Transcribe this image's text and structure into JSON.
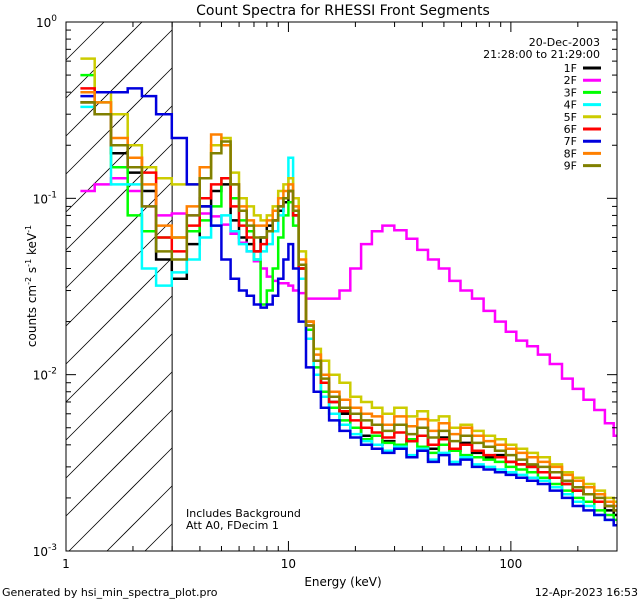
{
  "chart_data": {
    "type": "line",
    "title": "Count Spectra for RHESSI Front Segments",
    "xlabel": "Energy (keV)",
    "ylabel_parts": [
      "counts cm",
      "-2",
      " s",
      "-1",
      " keV",
      "-1"
    ],
    "ylabel": "counts cm-2 s-1 keV-1",
    "xscale": "log",
    "yscale": "log",
    "xlim": [
      1,
      300
    ],
    "ylim": [
      0.001,
      1
    ],
    "x_ticks": [
      {
        "value": 1,
        "label": "1"
      },
      {
        "value": 10,
        "label": "10"
      },
      {
        "value": 100,
        "label": "100"
      }
    ],
    "y_ticks": [
      {
        "value": 1,
        "base": "10",
        "exp": "0"
      },
      {
        "value": 0.1,
        "base": "10",
        "exp": "-1"
      },
      {
        "value": 0.01,
        "base": "10",
        "exp": "-2"
      },
      {
        "value": 0.001,
        "base": "10",
        "exp": "-3"
      }
    ],
    "date": "20-Dec-2003",
    "time_range": "21:28:00 to 21:29:00",
    "annotations": [
      "Includes Background",
      "Att A0, FDecim 1"
    ],
    "attenuator_region_keV": [
      1,
      3
    ],
    "series": [
      {
        "name": "1F",
        "color": "#000000",
        "x": [
          1.25,
          1.45,
          1.75,
          2.05,
          2.35,
          2.75,
          3.25,
          3.75,
          4.25,
          4.75,
          5.25,
          5.75,
          6.25,
          6.75,
          7.25,
          7.75,
          8.25,
          8.75,
          9.25,
          9.75,
          10.25,
          10.75,
          11.5,
          12.5,
          13.5,
          14.5,
          16,
          18,
          20,
          22.5,
          25,
          28,
          32,
          36,
          40,
          45,
          50,
          56,
          63,
          71,
          80,
          90,
          100,
          112,
          125,
          140,
          160,
          180,
          200,
          225,
          250,
          280,
          300
        ],
        "values": [
          0.35,
          0.3,
          0.18,
          0.14,
          0.11,
          0.045,
          0.035,
          0.055,
          0.09,
          0.11,
          0.12,
          0.075,
          0.06,
          0.055,
          0.05,
          0.06,
          0.07,
          0.075,
          0.085,
          0.095,
          0.11,
          0.08,
          0.04,
          0.02,
          0.012,
          0.009,
          0.007,
          0.006,
          0.005,
          0.0045,
          0.004,
          0.0042,
          0.0038,
          0.0042,
          0.0045,
          0.0038,
          0.0044,
          0.0037,
          0.0041,
          0.0036,
          0.0034,
          0.0035,
          0.0032,
          0.0031,
          0.003,
          0.0028,
          0.0026,
          0.0024,
          0.0022,
          0.0021,
          0.0019,
          0.0017,
          0.0016
        ]
      },
      {
        "name": "2F",
        "color": "#ff00ff",
        "x": [
          1.25,
          1.45,
          1.75,
          2.05,
          2.35,
          2.75,
          3.25,
          3.75,
          4.25,
          4.75,
          5.25,
          5.75,
          6.25,
          6.75,
          7.25,
          7.75,
          8.25,
          8.75,
          9.25,
          9.75,
          10.25,
          10.75,
          11.5,
          12.5,
          13.5,
          14.5,
          16,
          18,
          20,
          22.5,
          25,
          28,
          32,
          36,
          40,
          45,
          50,
          56,
          63,
          71,
          80,
          90,
          100,
          112,
          125,
          140,
          160,
          180,
          200,
          225,
          250,
          280,
          300
        ],
        "values": [
          0.11,
          0.12,
          0.13,
          0.11,
          0.09,
          0.08,
          0.082,
          0.08,
          0.082,
          0.079,
          0.071,
          0.063,
          0.056,
          0.05,
          0.044,
          0.04,
          0.036,
          0.034,
          0.033,
          0.033,
          0.032,
          0.03,
          0.029,
          0.027,
          0.027,
          0.027,
          0.027,
          0.03,
          0.04,
          0.055,
          0.065,
          0.07,
          0.066,
          0.059,
          0.051,
          0.045,
          0.04,
          0.034,
          0.03,
          0.027,
          0.023,
          0.02,
          0.0175,
          0.0156,
          0.0145,
          0.013,
          0.0115,
          0.0095,
          0.0083,
          0.0072,
          0.0063,
          0.0053,
          0.0045
        ]
      },
      {
        "name": "3F",
        "color": "#00ff00",
        "x": [
          1.25,
          1.45,
          1.75,
          2.05,
          2.35,
          2.75,
          3.25,
          3.75,
          4.25,
          4.75,
          5.25,
          5.75,
          6.25,
          6.75,
          7.25,
          7.75,
          8.25,
          8.75,
          9.25,
          9.75,
          10.25,
          10.75,
          11.5,
          12.5,
          13.5,
          14.5,
          16,
          18,
          20,
          22.5,
          25,
          28,
          32,
          36,
          40,
          45,
          50,
          56,
          63,
          71,
          80,
          90,
          100,
          112,
          125,
          140,
          160,
          180,
          200,
          225,
          250,
          280,
          300
        ],
        "values": [
          0.5,
          0.35,
          0.15,
          0.08,
          0.065,
          0.06,
          0.06,
          0.065,
          0.075,
          0.09,
          0.13,
          0.1,
          0.075,
          0.065,
          0.045,
          0.025,
          0.03,
          0.04,
          0.06,
          0.08,
          0.095,
          0.07,
          0.04,
          0.018,
          0.011,
          0.008,
          0.0065,
          0.0055,
          0.005,
          0.0043,
          0.0045,
          0.0041,
          0.004,
          0.0043,
          0.0039,
          0.0036,
          0.004,
          0.0037,
          0.0035,
          0.0034,
          0.0033,
          0.0032,
          0.003,
          0.0029,
          0.0028,
          0.0026,
          0.0024,
          0.0022,
          0.002,
          0.0019,
          0.0017,
          0.0016,
          0.0015
        ]
      },
      {
        "name": "4F",
        "color": "#00ffff",
        "x": [
          1.25,
          1.45,
          1.75,
          2.05,
          2.35,
          2.75,
          3.25,
          3.75,
          4.25,
          4.75,
          5.25,
          5.75,
          6.25,
          6.75,
          7.25,
          7.75,
          8.25,
          8.75,
          9.25,
          9.75,
          10.25,
          10.75,
          11.5,
          12.5,
          13.5,
          14.5,
          16,
          18,
          20,
          22.5,
          25,
          28,
          32,
          36,
          40,
          45,
          50,
          56,
          63,
          71,
          80,
          90,
          100,
          112,
          125,
          140,
          160,
          180,
          200,
          225,
          250,
          280,
          300
        ],
        "values": [
          0.33,
          0.3,
          0.12,
          0.12,
          0.04,
          0.032,
          0.038,
          0.045,
          0.06,
          0.07,
          0.08,
          0.065,
          0.055,
          0.05,
          0.045,
          0.05,
          0.055,
          0.065,
          0.08,
          0.1,
          0.17,
          0.09,
          0.035,
          0.016,
          0.01,
          0.0075,
          0.006,
          0.0052,
          0.0046,
          0.0042,
          0.004,
          0.0037,
          0.0039,
          0.0035,
          0.0038,
          0.0033,
          0.0036,
          0.0032,
          0.0034,
          0.0031,
          0.003,
          0.0029,
          0.0028,
          0.0027,
          0.0026,
          0.0025,
          0.0023,
          0.0021,
          0.0019,
          0.0018,
          0.0016,
          0.0015,
          0.0014
        ]
      },
      {
        "name": "5F",
        "color": "#cccc00",
        "x": [
          1.25,
          1.45,
          1.75,
          2.05,
          2.35,
          2.75,
          3.25,
          3.75,
          4.25,
          4.75,
          5.25,
          5.75,
          6.25,
          6.75,
          7.25,
          7.75,
          8.25,
          8.75,
          9.25,
          9.75,
          10.25,
          10.75,
          11.5,
          12.5,
          13.5,
          14.5,
          16,
          18,
          20,
          22.5,
          25,
          28,
          32,
          36,
          40,
          45,
          50,
          56,
          63,
          71,
          80,
          90,
          100,
          112,
          125,
          140,
          160,
          180,
          200,
          225,
          250,
          280,
          300
        ],
        "values": [
          0.62,
          0.4,
          0.3,
          0.2,
          0.15,
          0.13,
          0.12,
          0.12,
          0.13,
          0.2,
          0.22,
          0.14,
          0.1,
          0.09,
          0.08,
          0.075,
          0.08,
          0.09,
          0.11,
          0.12,
          0.13,
          0.1,
          0.05,
          0.02,
          0.014,
          0.012,
          0.01,
          0.009,
          0.0075,
          0.007,
          0.0065,
          0.006,
          0.0065,
          0.0058,
          0.0062,
          0.0055,
          0.0058,
          0.005,
          0.0052,
          0.0048,
          0.0045,
          0.0043,
          0.004,
          0.0038,
          0.0036,
          0.0034,
          0.0031,
          0.0028,
          0.0026,
          0.0024,
          0.0022,
          0.002,
          0.0019
        ]
      },
      {
        "name": "6F",
        "color": "#ff0000",
        "x": [
          1.25,
          1.45,
          1.75,
          2.05,
          2.35,
          2.75,
          3.25,
          3.75,
          4.25,
          4.75,
          5.25,
          5.75,
          6.25,
          6.75,
          7.25,
          7.75,
          8.25,
          8.75,
          9.25,
          9.75,
          10.25,
          10.75,
          11.5,
          12.5,
          13.5,
          14.5,
          16,
          18,
          20,
          22.5,
          25,
          28,
          32,
          36,
          40,
          45,
          50,
          56,
          63,
          71,
          80,
          90,
          100,
          112,
          125,
          140,
          160,
          180,
          200,
          225,
          250,
          280,
          300
        ],
        "values": [
          0.42,
          0.3,
          0.2,
          0.17,
          0.14,
          0.06,
          0.05,
          0.07,
          0.1,
          0.12,
          0.13,
          0.09,
          0.07,
          0.06,
          0.05,
          0.055,
          0.065,
          0.075,
          0.09,
          0.1,
          0.11,
          0.08,
          0.04,
          0.019,
          0.012,
          0.009,
          0.007,
          0.0062,
          0.0055,
          0.005,
          0.0047,
          0.0044,
          0.0047,
          0.0042,
          0.0045,
          0.004,
          0.0043,
          0.0038,
          0.004,
          0.0037,
          0.0035,
          0.0034,
          0.0032,
          0.0031,
          0.003,
          0.0028,
          0.0026,
          0.0024,
          0.0022,
          0.0021,
          0.0019,
          0.0018,
          0.0017
        ]
      },
      {
        "name": "7F",
        "color": "#0000dd",
        "x": [
          1.25,
          1.45,
          1.75,
          2.05,
          2.35,
          2.75,
          3.25,
          3.75,
          4.25,
          4.75,
          5.25,
          5.75,
          6.25,
          6.75,
          7.25,
          7.75,
          8.25,
          8.75,
          9.25,
          9.75,
          10.25,
          10.75,
          11.5,
          12.5,
          13.5,
          14.5,
          16,
          18,
          20,
          22.5,
          25,
          28,
          32,
          36,
          40,
          45,
          50,
          56,
          63,
          71,
          80,
          90,
          100,
          112,
          125,
          140,
          160,
          180,
          200,
          225,
          250,
          280,
          300
        ],
        "values": [
          0.38,
          0.4,
          0.4,
          0.42,
          0.38,
          0.3,
          0.22,
          0.12,
          0.09,
          0.07,
          0.045,
          0.035,
          0.03,
          0.028,
          0.025,
          0.024,
          0.025,
          0.028,
          0.035,
          0.045,
          0.055,
          0.04,
          0.02,
          0.011,
          0.008,
          0.0065,
          0.0055,
          0.0048,
          0.0044,
          0.004,
          0.0038,
          0.0036,
          0.0038,
          0.0034,
          0.0037,
          0.0032,
          0.0035,
          0.0031,
          0.0033,
          0.003,
          0.0029,
          0.0028,
          0.0027,
          0.0026,
          0.0025,
          0.0024,
          0.0022,
          0.002,
          0.0018,
          0.0017,
          0.0016,
          0.0015,
          0.0014
        ]
      },
      {
        "name": "8F",
        "color": "#ff8000",
        "x": [
          1.25,
          1.45,
          1.75,
          2.05,
          2.35,
          2.75,
          3.25,
          3.75,
          4.25,
          4.75,
          5.25,
          5.75,
          6.25,
          6.75,
          7.25,
          7.75,
          8.25,
          8.75,
          9.25,
          9.75,
          10.25,
          10.75,
          11.5,
          12.5,
          13.5,
          14.5,
          16,
          18,
          20,
          22.5,
          25,
          28,
          32,
          36,
          40,
          45,
          50,
          56,
          63,
          71,
          80,
          90,
          100,
          112,
          125,
          140,
          160,
          180,
          200,
          225,
          250,
          280,
          300
        ],
        "values": [
          0.4,
          0.35,
          0.22,
          0.17,
          0.12,
          0.07,
          0.06,
          0.09,
          0.15,
          0.23,
          0.2,
          0.12,
          0.09,
          0.075,
          0.07,
          0.07,
          0.075,
          0.085,
          0.1,
          0.11,
          0.12,
          0.09,
          0.045,
          0.02,
          0.013,
          0.01,
          0.008,
          0.0072,
          0.0065,
          0.006,
          0.0058,
          0.0052,
          0.0058,
          0.0051,
          0.0056,
          0.0048,
          0.0053,
          0.0046,
          0.005,
          0.0045,
          0.0042,
          0.004,
          0.0038,
          0.0036,
          0.0034,
          0.0032,
          0.003,
          0.0027,
          0.0025,
          0.0023,
          0.0021,
          0.0019,
          0.0018
        ]
      },
      {
        "name": "9F",
        "color": "#808000",
        "x": [
          1.25,
          1.45,
          1.75,
          2.05,
          2.35,
          2.75,
          3.25,
          3.75,
          4.25,
          4.75,
          5.25,
          5.75,
          6.25,
          6.75,
          7.25,
          7.75,
          8.25,
          8.75,
          9.25,
          9.75,
          10.25,
          10.75,
          11.5,
          12.5,
          13.5,
          14.5,
          16,
          18,
          20,
          22.5,
          25,
          28,
          32,
          36,
          40,
          45,
          50,
          56,
          63,
          71,
          80,
          90,
          100,
          112,
          125,
          140,
          160,
          180,
          200,
          225,
          250,
          280,
          300
        ],
        "values": [
          0.35,
          0.3,
          0.2,
          0.15,
          0.09,
          0.05,
          0.045,
          0.08,
          0.13,
          0.18,
          0.21,
          0.12,
          0.085,
          0.07,
          0.06,
          0.06,
          0.065,
          0.075,
          0.09,
          0.1,
          0.11,
          0.085,
          0.042,
          0.019,
          0.012,
          0.0095,
          0.0075,
          0.0065,
          0.006,
          0.0055,
          0.0052,
          0.0048,
          0.0052,
          0.0046,
          0.005,
          0.0044,
          0.0048,
          0.0042,
          0.0045,
          0.0041,
          0.0039,
          0.0037,
          0.0035,
          0.0033,
          0.0031,
          0.003,
          0.0028,
          0.0025,
          0.0023,
          0.0021,
          0.002,
          0.0018,
          0.0017
        ]
      }
    ]
  },
  "footer": {
    "generated_by": "Generated by hsi_min_spectra_plot.pro",
    "timestamp": "12-Apr-2023 16:53"
  }
}
